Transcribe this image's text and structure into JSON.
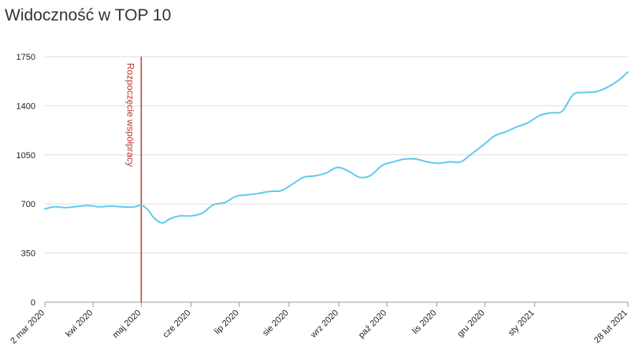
{
  "title": "Widoczność w TOP 10",
  "chart_data": {
    "type": "line",
    "title": "Widoczność w TOP 10",
    "xlabel": "",
    "ylabel": "",
    "ylim": [
      0,
      1750
    ],
    "yticks": [
      0,
      350,
      700,
      1050,
      1400,
      1750
    ],
    "grid": true,
    "legend": "none",
    "xlim": [
      "2020-03-02",
      "2021-02-28"
    ],
    "xticks": [
      {
        "date": "2020-03-02",
        "label": "2 mar 2020"
      },
      {
        "date": "2020-04-01",
        "label": "kwi 2020"
      },
      {
        "date": "2020-05-01",
        "label": "maj 2020"
      },
      {
        "date": "2020-06-01",
        "label": "cze 2020"
      },
      {
        "date": "2020-07-01",
        "label": "lip 2020"
      },
      {
        "date": "2020-08-01",
        "label": "sie 2020"
      },
      {
        "date": "2020-09-01",
        "label": "wrz 2020"
      },
      {
        "date": "2020-10-01",
        "label": "paź 2020"
      },
      {
        "date": "2020-11-01",
        "label": "lis 2020"
      },
      {
        "date": "2020-12-01",
        "label": "gru 2020"
      },
      {
        "date": "2021-01-01",
        "label": "sty 2021"
      },
      {
        "date": "2021-02-28",
        "label": "28 lut 2021"
      }
    ],
    "annotation": {
      "date": "2020-05-01",
      "label": "Rozpoczęcie współpracy",
      "color": "#c0392b"
    },
    "series": [
      {
        "color": "#62c9ec",
        "x": [
          "2020-03-02",
          "2020-03-08",
          "2020-03-15",
          "2020-03-22",
          "2020-03-29",
          "2020-04-05",
          "2020-04-12",
          "2020-04-19",
          "2020-04-26",
          "2020-05-01",
          "2020-05-05",
          "2020-05-09",
          "2020-05-14",
          "2020-05-19",
          "2020-05-25",
          "2020-06-01",
          "2020-06-08",
          "2020-06-15",
          "2020-06-22",
          "2020-06-29",
          "2020-07-06",
          "2020-07-13",
          "2020-07-20",
          "2020-07-27",
          "2020-08-03",
          "2020-08-10",
          "2020-08-17",
          "2020-08-24",
          "2020-08-31",
          "2020-09-07",
          "2020-09-14",
          "2020-09-21",
          "2020-09-28",
          "2020-10-05",
          "2020-10-12",
          "2020-10-19",
          "2020-10-26",
          "2020-11-02",
          "2020-11-09",
          "2020-11-16",
          "2020-11-23",
          "2020-11-30",
          "2020-12-07",
          "2020-12-14",
          "2020-12-21",
          "2020-12-28",
          "2021-01-04",
          "2021-01-11",
          "2021-01-18",
          "2021-01-25",
          "2021-02-01",
          "2021-02-08",
          "2021-02-15",
          "2021-02-22",
          "2021-02-28"
        ],
        "y": [
          665,
          680,
          675,
          682,
          688,
          680,
          685,
          680,
          678,
          690,
          660,
          600,
          565,
          595,
          615,
          615,
          635,
          695,
          710,
          755,
          765,
          775,
          790,
          795,
          840,
          890,
          900,
          920,
          960,
          935,
          890,
          905,
          975,
          1000,
          1020,
          1020,
          1000,
          990,
          1000,
          1000,
          1060,
          1120,
          1185,
          1215,
          1250,
          1280,
          1330,
          1350,
          1360,
          1480,
          1495,
          1500,
          1530,
          1580,
          1640
        ]
      }
    ]
  }
}
